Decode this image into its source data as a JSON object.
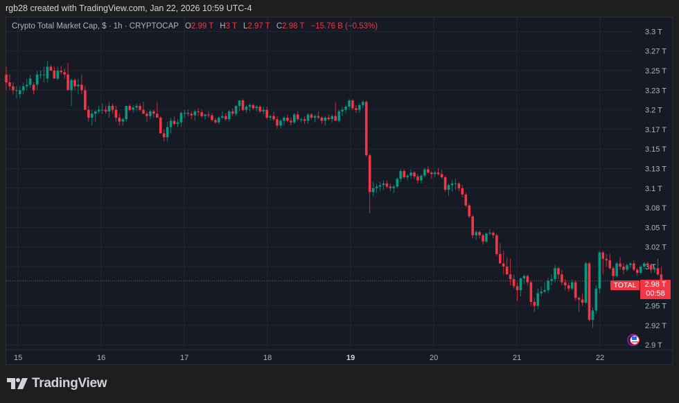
{
  "credit": "rgb28 created with TradingView.com, Jan 22, 2026 10:59 UTC-4",
  "legend": {
    "title": "Crypto Total Market Cap, $ · 1h · CRYPTOCAP",
    "o_key": "O",
    "o": "2.99 T",
    "h_key": "H",
    "h": "3 T",
    "l_key": "L",
    "l": "2.97 T",
    "c_key": "C",
    "c": "2.98 T",
    "change": "−15.76 B (−0.53%)"
  },
  "badges": {
    "symbol": "TOTAL",
    "price": "2.98 T",
    "countdown": "00:58"
  },
  "logo": {
    "text": "TradingView"
  },
  "colors": {
    "up": "#089981",
    "down": "#f23645",
    "bg": "#161a25",
    "grid": "#232733",
    "outer": "#1e1e1e"
  },
  "chart_data": {
    "type": "candlestick",
    "title": "Crypto Total Market Cap, $ · 1h · CRYPTOCAP",
    "xlabel": "",
    "ylabel": "",
    "y_ticks": [
      "3.3 T",
      "3.27 T",
      "3.25 T",
      "3.23 T",
      "3.2 T",
      "3.17 T",
      "3.15 T",
      "3.13 T",
      "3.1 T",
      "3.08 T",
      "3.05 T",
      "3.02 T",
      "3 T",
      "2.95 T",
      "2.92 T",
      "2.9 T"
    ],
    "y_tick_values": [
      3.3,
      3.275,
      3.25,
      3.225,
      3.2,
      3.175,
      3.15,
      3.125,
      3.1,
      3.075,
      3.05,
      3.025,
      3.0,
      2.95,
      2.925,
      2.9
    ],
    "x_ticks": [
      "15",
      "16",
      "17",
      "18",
      "19",
      "20",
      "21",
      "22"
    ],
    "x_tick_bold": [
      "19"
    ],
    "ylim": [
      2.895,
      3.31
    ],
    "last_price": 2.98,
    "ohlc_1h": [
      [
        3.245,
        3.255,
        3.225,
        3.235
      ],
      [
        3.235,
        3.245,
        3.225,
        3.23
      ],
      [
        3.23,
        3.235,
        3.22,
        3.225
      ],
      [
        3.225,
        3.23,
        3.215,
        3.225
      ],
      [
        3.22,
        3.23,
        3.215,
        3.225
      ],
      [
        3.225,
        3.235,
        3.22,
        3.23
      ],
      [
        3.23,
        3.24,
        3.225,
        3.232
      ],
      [
        3.232,
        3.245,
        3.228,
        3.24
      ],
      [
        3.232,
        3.235,
        3.22,
        3.225
      ],
      [
        3.232,
        3.25,
        3.225,
        3.245
      ],
      [
        3.245,
        3.25,
        3.24,
        3.245
      ],
      [
        3.245,
        3.255,
        3.235,
        3.245
      ],
      [
        3.24,
        3.262,
        3.235,
        3.255
      ],
      [
        3.255,
        3.258,
        3.25,
        3.25
      ],
      [
        3.25,
        3.255,
        3.24,
        3.24
      ],
      [
        3.24,
        3.255,
        3.238,
        3.25
      ],
      [
        3.25,
        3.256,
        3.245,
        3.248
      ],
      [
        3.248,
        3.253,
        3.24,
        3.245
      ],
      [
        3.245,
        3.26,
        3.225,
        3.225
      ],
      [
        3.225,
        3.24,
        3.205,
        3.238
      ],
      [
        3.238,
        3.24,
        3.225,
        3.23
      ],
      [
        3.23,
        3.24,
        3.22,
        3.232
      ],
      [
        3.232,
        3.245,
        3.22,
        3.225
      ],
      [
        3.225,
        3.23,
        3.2,
        3.2
      ],
      [
        3.2,
        3.205,
        3.185,
        3.19
      ],
      [
        3.19,
        3.2,
        3.18,
        3.195
      ],
      [
        3.195,
        3.2,
        3.185,
        3.198
      ],
      [
        3.198,
        3.205,
        3.195,
        3.2
      ],
      [
        3.2,
        3.208,
        3.195,
        3.2
      ],
      [
        3.2,
        3.205,
        3.195,
        3.198
      ],
      [
        3.198,
        3.21,
        3.19,
        3.205
      ],
      [
        3.205,
        3.208,
        3.195,
        3.2
      ],
      [
        3.2,
        3.205,
        3.185,
        3.19
      ],
      [
        3.19,
        3.195,
        3.18,
        3.185
      ],
      [
        3.185,
        3.19,
        3.18,
        3.188
      ],
      [
        3.188,
        3.205,
        3.185,
        3.205
      ],
      [
        3.205,
        3.207,
        3.198,
        3.2
      ],
      [
        3.2,
        3.206,
        3.196,
        3.203
      ],
      [
        3.203,
        3.208,
        3.198,
        3.205
      ],
      [
        3.205,
        3.208,
        3.198,
        3.2
      ],
      [
        3.2,
        3.21,
        3.195,
        3.195
      ],
      [
        3.195,
        3.198,
        3.185,
        3.192
      ],
      [
        3.192,
        3.2,
        3.188,
        3.198
      ],
      [
        3.198,
        3.2,
        3.19,
        3.195
      ],
      [
        3.195,
        3.21,
        3.19,
        3.19
      ],
      [
        3.19,
        3.192,
        3.17,
        3.17
      ],
      [
        3.17,
        3.175,
        3.16,
        3.165
      ],
      [
        3.165,
        3.185,
        3.16,
        3.178
      ],
      [
        3.178,
        3.19,
        3.17,
        3.186
      ],
      [
        3.186,
        3.192,
        3.18,
        3.182
      ],
      [
        3.182,
        3.188,
        3.178,
        3.184
      ],
      [
        3.184,
        3.198,
        3.178,
        3.196
      ],
      [
        3.196,
        3.2,
        3.19,
        3.196
      ],
      [
        3.196,
        3.2,
        3.192,
        3.195
      ],
      [
        3.195,
        3.198,
        3.188,
        3.193
      ],
      [
        3.193,
        3.2,
        3.186,
        3.198
      ],
      [
        3.198,
        3.202,
        3.192,
        3.197
      ],
      [
        3.197,
        3.2,
        3.19,
        3.192
      ],
      [
        3.192,
        3.195,
        3.188,
        3.194
      ],
      [
        3.194,
        3.198,
        3.19,
        3.193
      ],
      [
        3.193,
        3.196,
        3.185,
        3.187
      ],
      [
        3.187,
        3.19,
        3.182,
        3.184
      ],
      [
        3.184,
        3.192,
        3.182,
        3.19
      ],
      [
        3.19,
        3.198,
        3.188,
        3.192
      ],
      [
        3.192,
        3.196,
        3.186,
        3.188
      ],
      [
        3.188,
        3.2,
        3.185,
        3.198
      ],
      [
        3.198,
        3.202,
        3.192,
        3.195
      ],
      [
        3.195,
        3.206,
        3.192,
        3.205
      ],
      [
        3.205,
        3.21,
        3.198,
        3.212
      ],
      [
        3.212,
        3.214,
        3.198,
        3.2
      ],
      [
        3.2,
        3.206,
        3.196,
        3.204
      ],
      [
        3.204,
        3.208,
        3.198,
        3.206
      ],
      [
        3.206,
        3.208,
        3.2,
        3.202
      ],
      [
        3.202,
        3.206,
        3.198,
        3.204
      ],
      [
        3.204,
        3.206,
        3.196,
        3.198
      ],
      [
        3.198,
        3.204,
        3.194,
        3.2
      ],
      [
        3.2,
        3.204,
        3.188,
        3.19
      ],
      [
        3.19,
        3.194,
        3.186,
        3.192
      ],
      [
        3.192,
        3.198,
        3.186,
        3.188
      ],
      [
        3.188,
        3.192,
        3.176,
        3.18
      ],
      [
        3.18,
        3.188,
        3.176,
        3.186
      ],
      [
        3.186,
        3.192,
        3.18,
        3.19
      ],
      [
        3.19,
        3.194,
        3.184,
        3.186
      ],
      [
        3.186,
        3.19,
        3.18,
        3.184
      ],
      [
        3.184,
        3.196,
        3.182,
        3.194
      ],
      [
        3.194,
        3.198,
        3.186,
        3.188
      ],
      [
        3.188,
        3.19,
        3.184,
        3.188
      ],
      [
        3.188,
        3.192,
        3.182,
        3.186
      ],
      [
        3.186,
        3.196,
        3.182,
        3.194
      ],
      [
        3.194,
        3.196,
        3.188,
        3.19
      ],
      [
        3.19,
        3.194,
        3.184,
        3.192
      ],
      [
        3.192,
        3.198,
        3.188,
        3.19
      ],
      [
        3.19,
        3.192,
        3.182,
        3.186
      ],
      [
        3.186,
        3.192,
        3.18,
        3.19
      ],
      [
        3.19,
        3.194,
        3.186,
        3.188
      ],
      [
        3.188,
        3.194,
        3.184,
        3.192
      ],
      [
        3.192,
        3.21,
        3.186,
        3.186
      ],
      [
        3.186,
        3.2,
        3.184,
        3.198
      ],
      [
        3.198,
        3.204,
        3.192,
        3.2
      ],
      [
        3.2,
        3.206,
        3.196,
        3.204
      ],
      [
        3.204,
        3.214,
        3.2,
        3.212
      ],
      [
        3.212,
        3.214,
        3.2,
        3.202
      ],
      [
        3.202,
        3.206,
        3.196,
        3.2
      ],
      [
        3.2,
        3.208,
        3.196,
        3.206
      ],
      [
        3.206,
        3.212,
        3.202,
        3.21
      ],
      [
        3.21,
        3.212,
        3.14,
        3.142
      ],
      [
        3.142,
        3.144,
        3.068,
        3.095
      ],
      [
        3.095,
        3.108,
        3.09,
        3.1
      ],
      [
        3.1,
        3.106,
        3.094,
        3.102
      ],
      [
        3.102,
        3.108,
        3.096,
        3.104
      ],
      [
        3.104,
        3.11,
        3.098,
        3.106
      ],
      [
        3.106,
        3.11,
        3.1,
        3.102
      ],
      [
        3.102,
        3.106,
        3.096,
        3.1
      ],
      [
        3.1,
        3.104,
        3.094,
        3.102
      ],
      [
        3.102,
        3.114,
        3.1,
        3.112
      ],
      [
        3.112,
        3.124,
        3.108,
        3.122
      ],
      [
        3.122,
        3.124,
        3.112,
        3.114
      ],
      [
        3.114,
        3.118,
        3.11,
        3.116
      ],
      [
        3.116,
        3.124,
        3.112,
        3.12
      ],
      [
        3.12,
        3.122,
        3.112,
        3.115
      ],
      [
        3.115,
        3.118,
        3.106,
        3.11
      ],
      [
        3.11,
        3.118,
        3.106,
        3.116
      ],
      [
        3.116,
        3.126,
        3.114,
        3.124
      ],
      [
        3.124,
        3.128,
        3.118,
        3.12
      ],
      [
        3.12,
        3.122,
        3.112,
        3.118
      ],
      [
        3.118,
        3.122,
        3.114,
        3.12
      ],
      [
        3.12,
        3.126,
        3.116,
        3.118
      ],
      [
        3.118,
        3.124,
        3.112,
        3.114
      ],
      [
        3.114,
        3.116,
        3.096,
        3.098
      ],
      [
        3.098,
        3.106,
        3.09,
        3.104
      ],
      [
        3.104,
        3.11,
        3.096,
        3.106
      ],
      [
        3.106,
        3.112,
        3.098,
        3.106
      ],
      [
        3.106,
        3.108,
        3.096,
        3.1
      ],
      [
        3.1,
        3.104,
        3.088,
        3.092
      ],
      [
        3.092,
        3.094,
        3.076,
        3.078
      ],
      [
        3.078,
        3.08,
        3.062,
        3.064
      ],
      [
        3.064,
        3.066,
        3.036,
        3.04
      ],
      [
        3.04,
        3.046,
        3.034,
        3.044
      ],
      [
        3.044,
        3.046,
        3.036,
        3.04
      ],
      [
        3.04,
        3.042,
        3.028,
        3.032
      ],
      [
        3.032,
        3.044,
        3.03,
        3.042
      ],
      [
        3.042,
        3.048,
        3.04,
        3.043
      ],
      [
        3.043,
        3.045,
        3.036,
        3.04
      ],
      [
        3.04,
        3.042,
        3.014,
        3.016
      ],
      [
        3.016,
        3.03,
        3.01,
        3.004
      ],
      [
        3.004,
        3.02,
        2.99,
        3.0
      ],
      [
        3.0,
        3.012,
        2.99,
        2.99
      ],
      [
        2.99,
        3.01,
        2.976,
        2.984
      ],
      [
        2.984,
        2.99,
        2.972,
        2.975
      ],
      [
        2.975,
        2.98,
        2.956,
        2.97
      ],
      [
        2.97,
        2.986,
        2.962,
        2.985
      ],
      [
        2.985,
        2.99,
        2.978,
        2.988
      ],
      [
        2.988,
        2.99,
        2.976,
        2.98
      ],
      [
        2.98,
        2.982,
        2.95,
        2.955
      ],
      [
        2.955,
        2.96,
        2.942,
        2.95
      ],
      [
        2.95,
        2.972,
        2.946,
        2.966
      ],
      [
        2.966,
        2.974,
        2.962,
        2.968
      ],
      [
        2.968,
        2.98,
        2.966,
        2.97
      ],
      [
        2.97,
        2.986,
        2.966,
        2.982
      ],
      [
        2.982,
        2.99,
        2.976,
        2.984
      ],
      [
        2.984,
        3.002,
        2.98,
        2.998
      ],
      [
        2.998,
        3.0,
        2.984,
        2.99
      ],
      [
        2.99,
        2.996,
        2.976,
        2.98
      ],
      [
        2.98,
        2.984,
        2.97,
        2.976
      ],
      [
        2.976,
        2.98,
        2.968,
        2.972
      ],
      [
        2.972,
        2.984,
        2.97,
        2.98
      ],
      [
        2.98,
        2.982,
        2.956,
        2.96
      ],
      [
        2.96,
        2.962,
        2.942,
        2.958
      ],
      [
        2.958,
        2.966,
        2.95,
        2.954
      ],
      [
        2.954,
        3.006,
        2.952,
        3.004
      ],
      [
        3.004,
        3.006,
        2.93,
        2.932
      ],
      [
        2.932,
        2.948,
        2.922,
        2.944
      ],
      [
        2.944,
        2.976,
        2.94,
        2.972
      ],
      [
        2.972,
        3.02,
        2.966,
        3.018
      ],
      [
        3.018,
        3.02,
        2.99,
        3.01
      ],
      [
        3.01,
        3.016,
        3.0,
        3.008
      ],
      [
        3.008,
        3.016,
        2.996,
        2.998
      ],
      [
        2.998,
        3.0,
        2.982,
        2.988
      ],
      [
        2.988,
        3.006,
        2.986,
        3.004
      ],
      [
        3.004,
        3.012,
        2.996,
        3.0
      ],
      [
        3.0,
        3.004,
        2.99,
        2.996
      ],
      [
        2.996,
        3.004,
        2.994,
        3.002
      ],
      [
        3.002,
        3.006,
        2.998,
        3.004
      ],
      [
        3.004,
        3.008,
        2.994,
        2.996
      ],
      [
        2.996,
        2.998,
        2.988,
        2.992
      ],
      [
        2.992,
        3.002,
        2.99,
        3.0
      ],
      [
        3.0,
        3.006,
        2.996,
        3.004
      ],
      [
        3.004,
        3.006,
        3.0,
        3.002
      ],
      [
        3.002,
        3.004,
        2.992,
        2.996
      ],
      [
        2.996,
        3.0,
        2.992,
        2.998
      ],
      [
        2.998,
        3.01,
        2.988,
        2.99
      ],
      [
        2.99,
        3.0,
        2.97,
        2.98
      ]
    ]
  }
}
